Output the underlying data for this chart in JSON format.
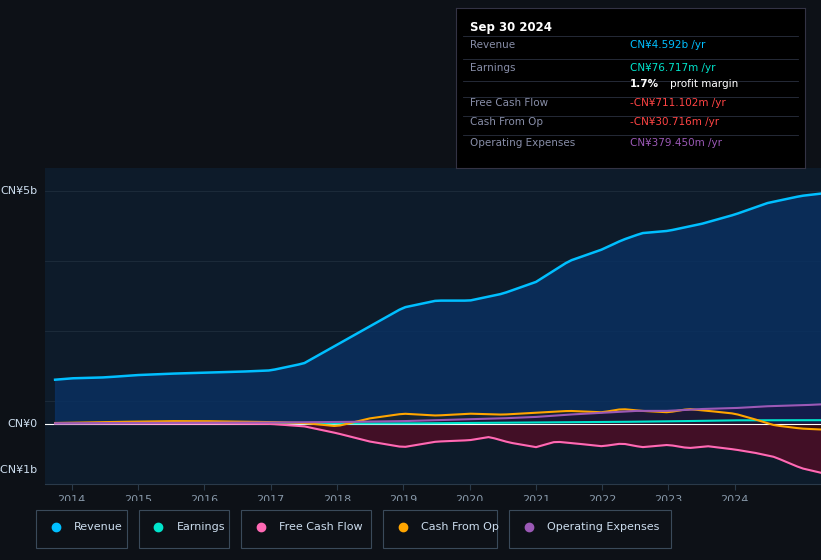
{
  "bg_color": "#0d1117",
  "plot_bg_color": "#0d1b2a",
  "colors": {
    "revenue": "#00bfff",
    "earnings": "#00e5cc",
    "free_cash_flow": "#ff69b4",
    "cash_from_op": "#ffa500",
    "operating_expenses": "#9b59b6"
  },
  "legend": [
    {
      "label": "Revenue",
      "color": "#00bfff"
    },
    {
      "label": "Earnings",
      "color": "#00e5cc"
    },
    {
      "label": "Free Cash Flow",
      "color": "#ff69b4"
    },
    {
      "label": "Cash From Op",
      "color": "#ffa500"
    },
    {
      "label": "Operating Expenses",
      "color": "#9b59b6"
    }
  ],
  "fill_colors": {
    "revenue": "#0a3a6b",
    "fcf": "#6b0a2a",
    "cash_op_pos": "#2a2000",
    "cash_op_neg": "#2a1000",
    "opex": "#2a0a4a"
  },
  "ylim": [
    -1300000000.0,
    5500000000.0
  ],
  "xlim": [
    2013.6,
    2025.3
  ],
  "xticks": [
    2014,
    2015,
    2016,
    2017,
    2018,
    2019,
    2020,
    2021,
    2022,
    2023,
    2024
  ],
  "ylabel_5b_text": "CN¥5b",
  "ylabel_0_text": "CN¥0",
  "ylabel_neg_text": "-CN¥1b",
  "tooltip_title": "Sep 30 2024",
  "tooltip_rows": [
    {
      "label": "Revenue",
      "value": "CN¥4.592b /yr",
      "label_color": "#888ea8",
      "value_color": "#00bfff"
    },
    {
      "label": "Earnings",
      "value": "CN¥76.717m /yr",
      "label_color": "#888ea8",
      "value_color": "#00e5cc"
    },
    {
      "label": "",
      "value": "1.7% profit margin",
      "label_color": "#888ea8",
      "value_color": "#cccccc",
      "bold_prefix": "1.7%"
    },
    {
      "label": "Free Cash Flow",
      "value": "-CN¥711.102m /yr",
      "label_color": "#888ea8",
      "value_color": "#ff4444"
    },
    {
      "label": "Cash From Op",
      "value": "-CN¥30.716m /yr",
      "label_color": "#888ea8",
      "value_color": "#ff4444"
    },
    {
      "label": "Operating Expenses",
      "value": "CN¥379.450m /yr",
      "label_color": "#888ea8",
      "value_color": "#9b59b6"
    }
  ]
}
